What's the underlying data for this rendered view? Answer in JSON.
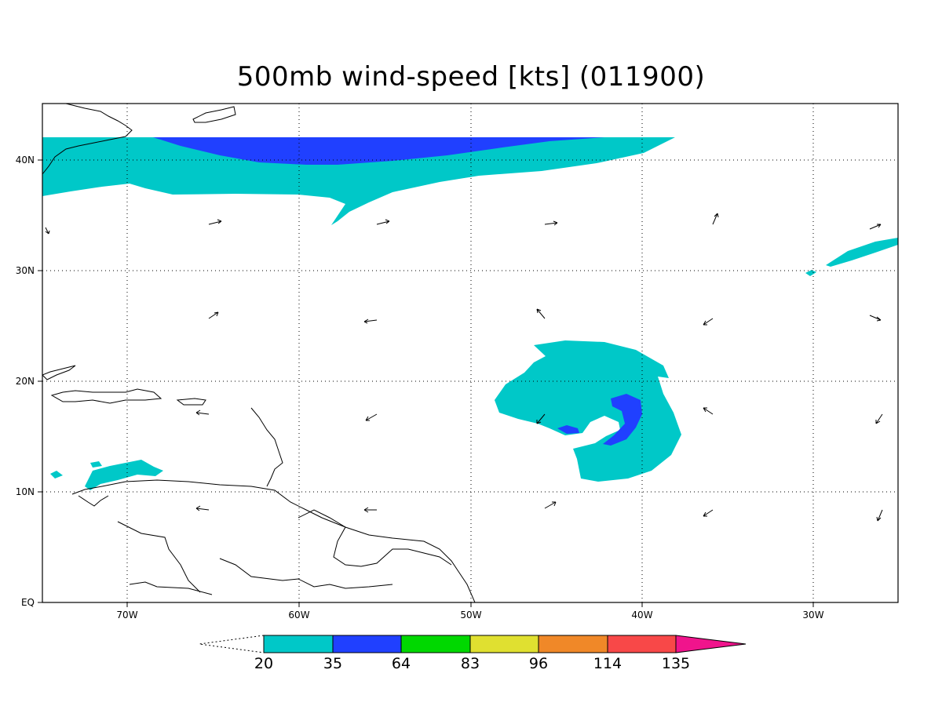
{
  "title": "500mb wind-speed [kts] (011900)",
  "colors": {
    "c20_35": "#00c8c8",
    "c35_64": "#2040ff",
    "c64_83": "#00d800",
    "c83_96": "#e0e030",
    "c96_114": "#f08828",
    "c114_135": "#f84848",
    "c135plus": "#f0148c"
  },
  "lon_labels": [
    "70W",
    "60W",
    "50W",
    "40W",
    "30W"
  ],
  "lat_labels": [
    "EQ",
    "10N",
    "20N",
    "30N",
    "40N"
  ],
  "colorbar": {
    "levels": [
      "20",
      "35",
      "64",
      "83",
      "96",
      "114",
      "135"
    ]
  }
}
